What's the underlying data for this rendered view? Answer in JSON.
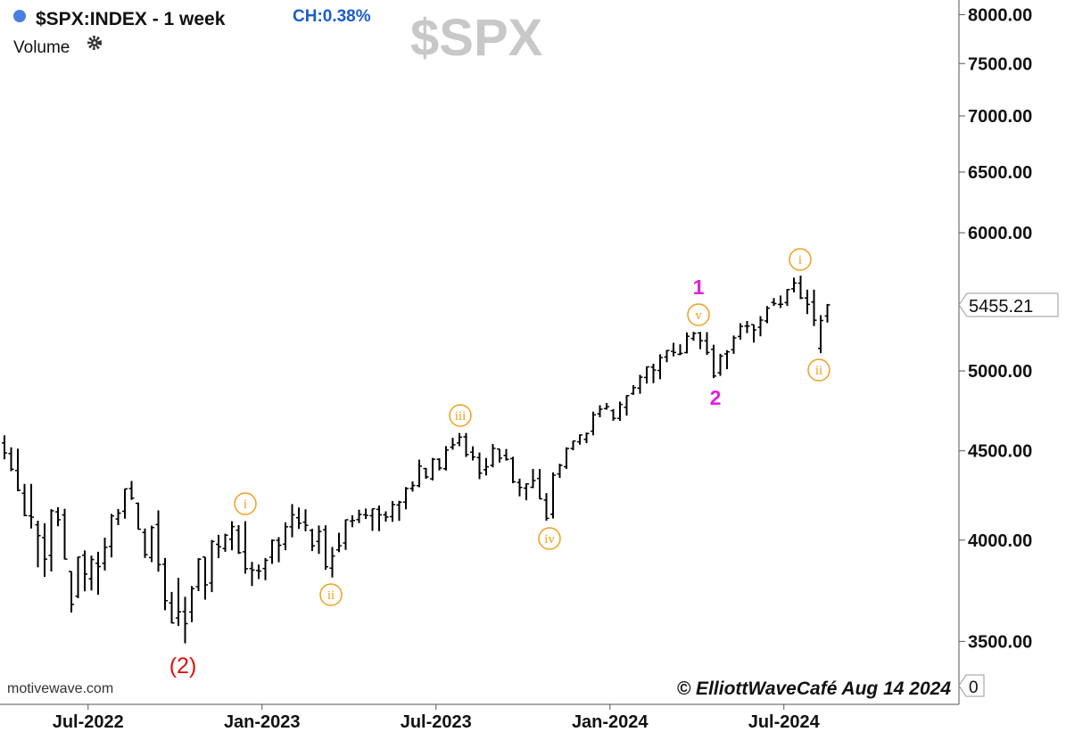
{
  "chart_data": {
    "type": "ohlc",
    "title": "$SPX:INDEX - 1 week",
    "change_label": "CH:0.38%",
    "watermark": "$SPX",
    "indicator_label": "Volume",
    "volume_tick": 0,
    "source": "motivewave.com",
    "copyright": "© ElliottWaveCafé Aug 14 2024",
    "color": "#000000",
    "log_scale": true,
    "ylim": [
      3221,
      8156
    ],
    "yticks": [
      {
        "value": 3500,
        "label": "3500.00"
      },
      {
        "value": 4000,
        "label": "4000.00"
      },
      {
        "value": 4500,
        "label": "4500.00"
      },
      {
        "value": 5000,
        "label": "5000.00"
      },
      {
        "value": 6000,
        "label": "6000.00"
      },
      {
        "value": 6500,
        "label": "6500.00"
      },
      {
        "value": 7000,
        "label": "7000.00"
      },
      {
        "value": 7500,
        "label": "7500.00"
      },
      {
        "value": 8000,
        "label": "8000.00"
      }
    ],
    "xticks": [
      {
        "value": 12.5,
        "label": "Jul-2022"
      },
      {
        "value": 38.5,
        "label": "Jan-2023"
      },
      {
        "value": 64.5,
        "label": "Jul-2023"
      },
      {
        "value": 90.5,
        "label": "Jan-2024"
      },
      {
        "value": 116.5,
        "label": "Jul-2024"
      }
    ],
    "annotations": [
      "(2)",
      "i",
      "ii",
      "iii",
      "iv",
      "v",
      "i",
      "ii",
      "1",
      "2"
    ],
    "open": [
      4547,
      4484,
      4385,
      4255,
      4130,
      4082,
      4013,
      3920,
      4152,
      4135,
      3838,
      3715,
      3921,
      3801,
      3880,
      3880,
      3967,
      4113,
      4155,
      4282,
      4199,
      4041,
      3909,
      4083,
      3875,
      3682,
      3610,
      3640,
      3638,
      3762,
      3912,
      3780,
      3978,
      3956,
      4005,
      4053,
      3939,
      3853,
      3843,
      3853,
      3911,
      3999,
      3979,
      4071,
      4120,
      4096,
      4052,
      3993,
      4055,
      3855,
      3949,
      3985,
      4102,
      4110,
      4136,
      4131,
      4166,
      4136,
      4126,
      4190,
      4206,
      4282,
      4298,
      4396,
      4337,
      4450,
      4395,
      4522,
      4547,
      4584,
      4492,
      4460,
      4389,
      4415,
      4511,
      4473,
      4454,
      4316,
      4284,
      4289,
      4339,
      4217,
      4139,
      4365,
      4407,
      4514,
      4554,
      4569,
      4618,
      4725,
      4758,
      4745,
      4697,
      4766,
      4853,
      4888,
      4957,
      5026,
      5003,
      5093,
      5131,
      5111,
      5123,
      5219,
      5257,
      5203,
      5145,
      4988,
      5114,
      5142,
      5233,
      5305,
      5315,
      5297,
      5341,
      5473,
      5459,
      5472,
      5572,
      5614,
      5505,
      5476,
      5151,
      5376
    ],
    "high": [
      4593,
      4521,
      4513,
      4308,
      4308,
      4104,
      4090,
      4167,
      4178,
      4169,
      3838,
      3914,
      3946,
      3919,
      3939,
      4013,
      4141,
      4168,
      4281,
      4325,
      4203,
      4062,
      4077,
      4160,
      3907,
      3736,
      3806,
      3712,
      3765,
      3906,
      3911,
      4001,
      4028,
      4034,
      4101,
      4080,
      4101,
      3887,
      3873,
      3907,
      4003,
      4016,
      4095,
      4195,
      4176,
      4166,
      4060,
      4078,
      4079,
      3964,
      4039,
      4110,
      4133,
      4164,
      4170,
      4170,
      4187,
      4155,
      4212,
      4213,
      4290,
      4322,
      4448,
      4400,
      4458,
      4456,
      4528,
      4578,
      4607,
      4607,
      4527,
      4490,
      4458,
      4541,
      4511,
      4511,
      4465,
      4338,
      4311,
      4394,
      4393,
      4256,
      4374,
      4424,
      4521,
      4560,
      4598,
      4610,
      4739,
      4779,
      4793,
      4755,
      4802,
      4842,
      4907,
      4975,
      5030,
      5048,
      5111,
      5140,
      5189,
      5179,
      5261,
      5265,
      5264,
      5263,
      5176,
      5114,
      5139,
      5239,
      5325,
      5341,
      5315,
      5375,
      5447,
      5505,
      5523,
      5570,
      5655,
      5670,
      5566,
      5566,
      5382,
      5462
    ],
    "low": [
      4450,
      4381,
      4267,
      4128,
      4062,
      3859,
      3811,
      3838,
      4074,
      3900,
      3636,
      3705,
      3739,
      3743,
      3722,
      3843,
      3910,
      4080,
      4115,
      4218,
      4057,
      3907,
      3886,
      3837,
      3647,
      3584,
      3572,
      3491,
      3590,
      3740,
      3698,
      3735,
      3906,
      3939,
      3947,
      3928,
      3827,
      3765,
      3800,
      3794,
      3877,
      3885,
      3947,
      4015,
      4060,
      4047,
      3943,
      3928,
      3847,
      3808,
      3937,
      3949,
      4069,
      4091,
      4113,
      4049,
      4048,
      4099,
      4098,
      4103,
      4166,
      4264,
      4289,
      4337,
      4328,
      4385,
      4385,
      4507,
      4528,
      4464,
      4443,
      4335,
      4356,
      4403,
      4431,
      4442,
      4312,
      4238,
      4216,
      4284,
      4223,
      4104,
      4116,
      4342,
      4394,
      4504,
      4537,
      4546,
      4593,
      4704,
      4751,
      4682,
      4682,
      4714,
      4845,
      4852,
      4918,
      4920,
      4946,
      5058,
      5097,
      5105,
      5117,
      5203,
      5146,
      5107,
      4953,
      4968,
      5012,
      5114,
      5211,
      5256,
      5191,
      5234,
      5325,
      5448,
      5433,
      5448,
      5546,
      5497,
      5390,
      5305,
      5119,
      5330
    ],
    "close": [
      4488,
      4392,
      4272,
      4132,
      4123,
      4024,
      3901,
      4158,
      4109,
      3901,
      3675,
      3912,
      3825,
      3899,
      3863,
      3962,
      4130,
      4145,
      4280,
      4228,
      4058,
      3924,
      4067,
      3873,
      3693,
      3586,
      3639,
      3583,
      3752,
      3901,
      3771,
      3993,
      3965,
      4026,
      4072,
      3934,
      3852,
      3845,
      3840,
      3895,
      3999,
      3973,
      4071,
      4136,
      4090,
      4079,
      3970,
      4046,
      3862,
      3917,
      3971,
      4109,
      4105,
      4138,
      4133,
      4169,
      4136,
      4124,
      4192,
      4205,
      4282,
      4299,
      4410,
      4348,
      4450,
      4399,
      4505,
      4536,
      4582,
      4478,
      4464,
      4370,
      4406,
      4515,
      4457,
      4450,
      4320,
      4288,
      4308,
      4327,
      4224,
      4117,
      4358,
      4415,
      4514,
      4559,
      4595,
      4604,
      4719,
      4754,
      4770,
      4697,
      4784,
      4840,
      4891,
      4959,
      5027,
      5006,
      5089,
      5137,
      5124,
      5117,
      5234,
      5254,
      5204,
      5123,
      4967,
      5100,
      5128,
      5223,
      5303,
      5305,
      5278,
      5347,
      5432,
      5465,
      5460,
      5567,
      5615,
      5505,
      5459,
      5346,
      5344,
      5455.21
    ]
  }
}
